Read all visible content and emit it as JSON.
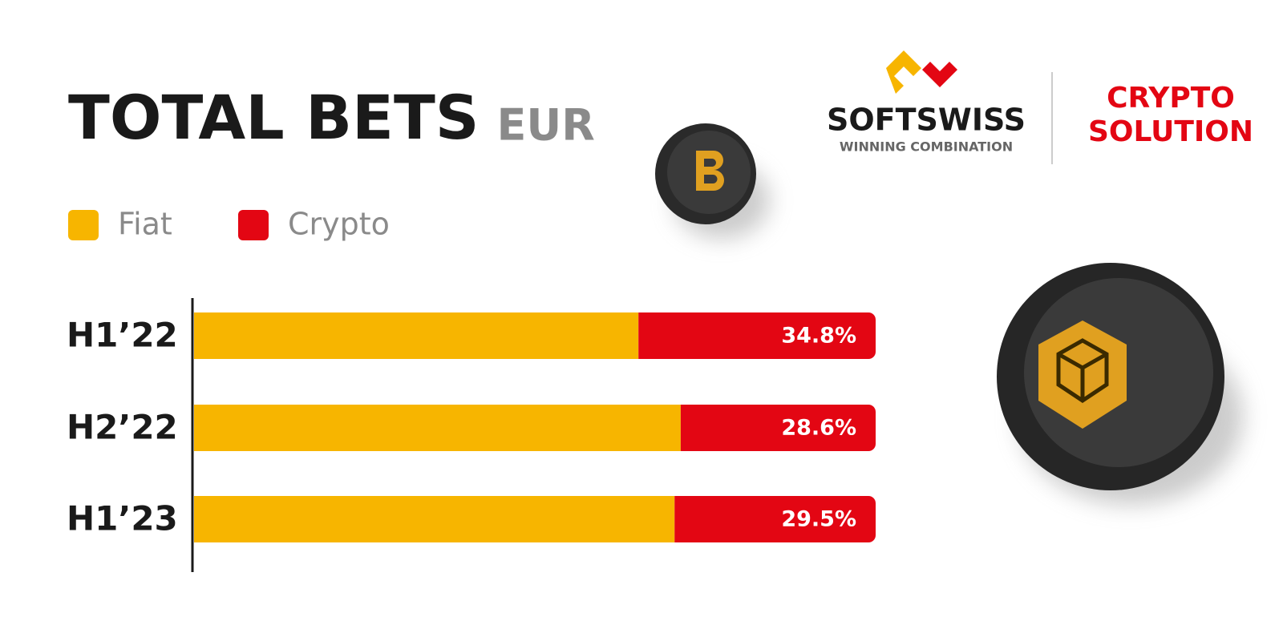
{
  "header": {
    "title": "TOTAL BETS",
    "unit": "EUR"
  },
  "logo": {
    "brand": "SOFTSWISS",
    "tagline": "WINNING COMBINATION",
    "product": [
      "CRYPTO",
      "SOLUTION"
    ]
  },
  "chart_data": {
    "type": "bar",
    "orientation": "horizontal",
    "stacked": true,
    "categories": [
      "H1’22",
      "H2’22",
      "H1’23"
    ],
    "series": [
      {
        "name": "Fiat",
        "color": "#f7b500",
        "values": [
          65.2,
          71.4,
          70.5
        ]
      },
      {
        "name": "Crypto",
        "color": "#e30613",
        "values": [
          34.8,
          28.6,
          29.5
        ],
        "value_labels": [
          "34.8%",
          "28.6%",
          "29.5%"
        ]
      }
    ]
  }
}
